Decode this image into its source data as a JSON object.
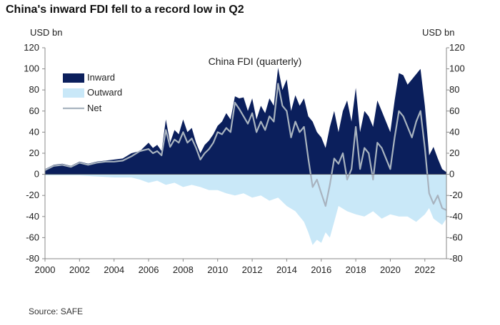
{
  "headline": "China's inward FDI fell to a record low in Q2",
  "source": "Source: SAFE",
  "chart_data": {
    "type": "area",
    "title": "China  FDI (quarterly)",
    "ylabel_left": "USD bn",
    "ylabel_right": "USD bn",
    "ylim": [
      -80,
      120
    ],
    "xlim": [
      2000,
      2023.25
    ],
    "yticks": [
      -80,
      -60,
      -40,
      -20,
      0,
      20,
      40,
      60,
      80,
      100,
      120
    ],
    "xticks": [
      2000,
      2002,
      2004,
      2006,
      2008,
      2010,
      2012,
      2014,
      2016,
      2018,
      2020,
      2022
    ],
    "grid": false,
    "legend_position": "top-left",
    "colors": {
      "inward": "#0b1f5c",
      "outward": "#c9e8f8",
      "net": "#a8b3bf"
    },
    "series": [
      {
        "name": "Inward",
        "style": "area",
        "points": [
          [
            2000,
            5
          ],
          [
            2000.5,
            9
          ],
          [
            2001,
            10
          ],
          [
            2001.5,
            8
          ],
          [
            2002,
            12
          ],
          [
            2002.5,
            10
          ],
          [
            2003,
            12
          ],
          [
            2003.5,
            13
          ],
          [
            2004,
            14
          ],
          [
            2004.5,
            15
          ],
          [
            2005,
            20
          ],
          [
            2005.5,
            22
          ],
          [
            2006,
            30
          ],
          [
            2006.25,
            25
          ],
          [
            2006.5,
            28
          ],
          [
            2006.75,
            22
          ],
          [
            2007,
            52
          ],
          [
            2007.25,
            30
          ],
          [
            2007.5,
            42
          ],
          [
            2007.75,
            38
          ],
          [
            2008,
            52
          ],
          [
            2008.25,
            40
          ],
          [
            2008.5,
            44
          ],
          [
            2008.75,
            30
          ],
          [
            2009,
            20
          ],
          [
            2009.25,
            28
          ],
          [
            2009.5,
            32
          ],
          [
            2009.75,
            38
          ],
          [
            2010,
            46
          ],
          [
            2010.25,
            50
          ],
          [
            2010.5,
            58
          ],
          [
            2010.75,
            52
          ],
          [
            2011,
            74
          ],
          [
            2011.25,
            72
          ],
          [
            2011.5,
            73
          ],
          [
            2011.75,
            60
          ],
          [
            2012,
            72
          ],
          [
            2012.25,
            52
          ],
          [
            2012.5,
            65
          ],
          [
            2012.75,
            58
          ],
          [
            2013,
            72
          ],
          [
            2013.25,
            65
          ],
          [
            2013.5,
            101
          ],
          [
            2013.75,
            80
          ],
          [
            2014,
            90
          ],
          [
            2014.25,
            60
          ],
          [
            2014.5,
            75
          ],
          [
            2014.75,
            65
          ],
          [
            2015,
            72
          ],
          [
            2015.25,
            55
          ],
          [
            2015.5,
            50
          ],
          [
            2015.75,
            40
          ],
          [
            2016,
            35
          ],
          [
            2016.25,
            25
          ],
          [
            2016.5,
            45
          ],
          [
            2016.75,
            60
          ],
          [
            2017,
            40
          ],
          [
            2017.25,
            60
          ],
          [
            2017.5,
            70
          ],
          [
            2017.75,
            50
          ],
          [
            2018,
            82
          ],
          [
            2018.25,
            40
          ],
          [
            2018.5,
            60
          ],
          [
            2018.75,
            55
          ],
          [
            2019,
            45
          ],
          [
            2019.25,
            70
          ],
          [
            2019.5,
            60
          ],
          [
            2019.75,
            50
          ],
          [
            2020,
            40
          ],
          [
            2020.25,
            70
          ],
          [
            2020.5,
            96
          ],
          [
            2020.75,
            94
          ],
          [
            2021,
            85
          ],
          [
            2021.25,
            90
          ],
          [
            2021.5,
            95
          ],
          [
            2021.75,
            100
          ],
          [
            2022,
            65
          ],
          [
            2022.25,
            18
          ],
          [
            2022.5,
            26
          ],
          [
            2022.75,
            15
          ],
          [
            2023,
            5
          ],
          [
            2023.25,
            2
          ]
        ]
      },
      {
        "name": "Outward",
        "style": "area",
        "points": [
          [
            2000,
            -1
          ],
          [
            2001,
            -1
          ],
          [
            2002,
            -1
          ],
          [
            2003,
            -2
          ],
          [
            2004,
            -3
          ],
          [
            2005,
            -3
          ],
          [
            2005.5,
            -5
          ],
          [
            2006,
            -8
          ],
          [
            2006.5,
            -6
          ],
          [
            2007,
            -10
          ],
          [
            2007.5,
            -8
          ],
          [
            2008,
            -12
          ],
          [
            2008.5,
            -10
          ],
          [
            2009,
            -12
          ],
          [
            2009.5,
            -15
          ],
          [
            2010,
            -15
          ],
          [
            2010.5,
            -18
          ],
          [
            2011,
            -20
          ],
          [
            2011.5,
            -18
          ],
          [
            2012,
            -22
          ],
          [
            2012.5,
            -20
          ],
          [
            2013,
            -25
          ],
          [
            2013.5,
            -22
          ],
          [
            2014,
            -30
          ],
          [
            2014.5,
            -35
          ],
          [
            2015,
            -45
          ],
          [
            2015.25,
            -55
          ],
          [
            2015.5,
            -67
          ],
          [
            2015.75,
            -62
          ],
          [
            2016,
            -65
          ],
          [
            2016.25,
            -55
          ],
          [
            2016.5,
            -60
          ],
          [
            2016.75,
            -45
          ],
          [
            2017,
            -30
          ],
          [
            2017.5,
            -35
          ],
          [
            2018,
            -38
          ],
          [
            2018.5,
            -40
          ],
          [
            2019,
            -35
          ],
          [
            2019.5,
            -42
          ],
          [
            2020,
            -38
          ],
          [
            2020.5,
            -40
          ],
          [
            2021,
            -40
          ],
          [
            2021.5,
            -45
          ],
          [
            2022,
            -38
          ],
          [
            2022.25,
            -32
          ],
          [
            2022.5,
            -42
          ],
          [
            2022.75,
            -45
          ],
          [
            2023,
            -48
          ],
          [
            2023.25,
            -42
          ]
        ]
      },
      {
        "name": "Net",
        "style": "line",
        "points": [
          [
            2000,
            4
          ],
          [
            2000.5,
            8
          ],
          [
            2001,
            9
          ],
          [
            2001.5,
            7
          ],
          [
            2002,
            11
          ],
          [
            2002.5,
            9
          ],
          [
            2003,
            11
          ],
          [
            2003.5,
            12
          ],
          [
            2004,
            12
          ],
          [
            2004.5,
            13
          ],
          [
            2005,
            17
          ],
          [
            2005.5,
            22
          ],
          [
            2006,
            24
          ],
          [
            2006.25,
            20
          ],
          [
            2006.5,
            22
          ],
          [
            2006.75,
            18
          ],
          [
            2007,
            42
          ],
          [
            2007.25,
            26
          ],
          [
            2007.5,
            33
          ],
          [
            2007.75,
            30
          ],
          [
            2008,
            40
          ],
          [
            2008.25,
            30
          ],
          [
            2008.5,
            34
          ],
          [
            2008.75,
            25
          ],
          [
            2009,
            14
          ],
          [
            2009.25,
            20
          ],
          [
            2009.5,
            24
          ],
          [
            2009.75,
            30
          ],
          [
            2010,
            40
          ],
          [
            2010.25,
            38
          ],
          [
            2010.5,
            44
          ],
          [
            2010.75,
            40
          ],
          [
            2011,
            68
          ],
          [
            2011.25,
            62
          ],
          [
            2011.5,
            55
          ],
          [
            2011.75,
            48
          ],
          [
            2012,
            58
          ],
          [
            2012.25,
            40
          ],
          [
            2012.5,
            50
          ],
          [
            2012.75,
            42
          ],
          [
            2013,
            55
          ],
          [
            2013.25,
            50
          ],
          [
            2013.5,
            86
          ],
          [
            2013.75,
            65
          ],
          [
            2014,
            60
          ],
          [
            2014.25,
            35
          ],
          [
            2014.5,
            50
          ],
          [
            2014.75,
            40
          ],
          [
            2015,
            45
          ],
          [
            2015.25,
            15
          ],
          [
            2015.5,
            -12
          ],
          [
            2015.75,
            -5
          ],
          [
            2016,
            -18
          ],
          [
            2016.25,
            -30
          ],
          [
            2016.5,
            -10
          ],
          [
            2016.75,
            15
          ],
          [
            2017,
            10
          ],
          [
            2017.25,
            20
          ],
          [
            2017.5,
            -5
          ],
          [
            2017.75,
            5
          ],
          [
            2018,
            45
          ],
          [
            2018.25,
            5
          ],
          [
            2018.5,
            25
          ],
          [
            2018.75,
            20
          ],
          [
            2019,
            -5
          ],
          [
            2019.25,
            30
          ],
          [
            2019.5,
            25
          ],
          [
            2019.75,
            15
          ],
          [
            2020,
            5
          ],
          [
            2020.25,
            35
          ],
          [
            2020.5,
            60
          ],
          [
            2020.75,
            55
          ],
          [
            2021,
            45
          ],
          [
            2021.25,
            35
          ],
          [
            2021.5,
            50
          ],
          [
            2021.75,
            60
          ],
          [
            2022,
            25
          ],
          [
            2022.25,
            -18
          ],
          [
            2022.5,
            -28
          ],
          [
            2022.75,
            -20
          ],
          [
            2023,
            -32
          ],
          [
            2023.25,
            -34
          ]
        ]
      }
    ]
  }
}
